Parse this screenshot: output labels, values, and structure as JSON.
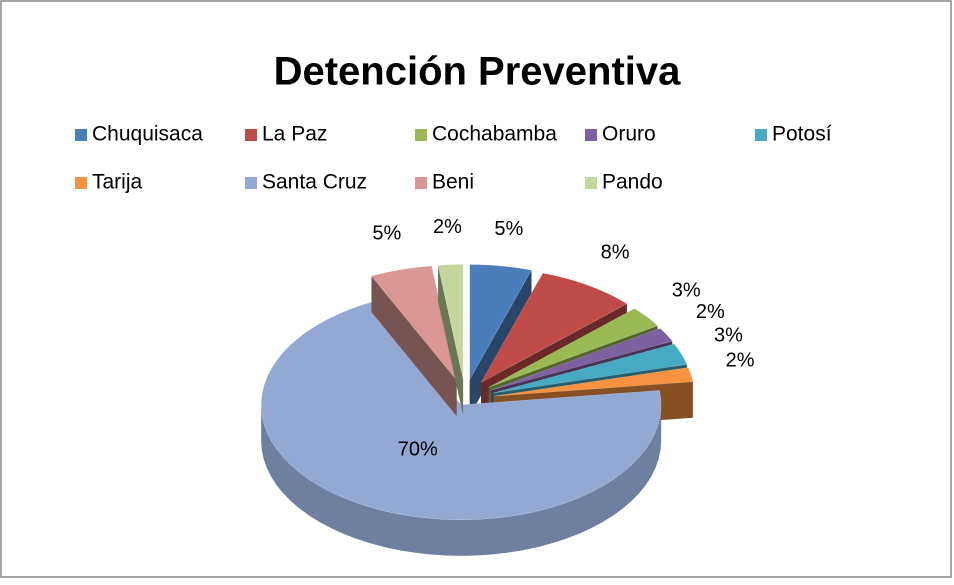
{
  "chart_data": {
    "type": "pie",
    "title": "Detención Preventiva",
    "categories": [
      "Chuquisaca",
      "La Paz",
      "Cochabamba",
      "Oruro",
      "Potosí",
      "Tarija",
      "Santa Cruz",
      "Beni",
      "Pando"
    ],
    "values": [
      5,
      8,
      3,
      2,
      3,
      2,
      70,
      5,
      2
    ],
    "value_labels": [
      "5%",
      "8%",
      "3%",
      "2%",
      "3%",
      "2%",
      "70%",
      "5%",
      "2%"
    ],
    "colors": [
      "#4a7ebb",
      "#be4b48",
      "#98b954",
      "#7d60a0",
      "#46aac5",
      "#f69240",
      "#93a9d4",
      "#d99694",
      "#c3d69b"
    ],
    "legend": "top"
  }
}
